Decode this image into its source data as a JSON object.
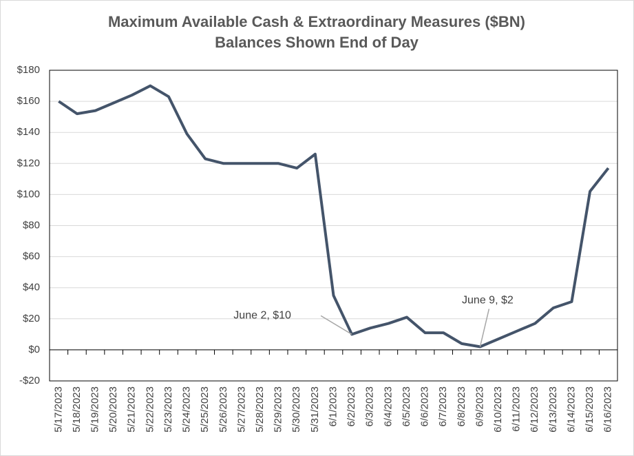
{
  "chart_data": {
    "type": "line",
    "title": "Maximum Available Cash & Extraordinary Measures ($BN)",
    "subtitle": "Balances Shown End of Day",
    "categories": [
      "5/17/2023",
      "5/18/2023",
      "5/19/2023",
      "5/20/2023",
      "5/21/2023",
      "5/22/2023",
      "5/23/2023",
      "5/24/2023",
      "5/25/2023",
      "5/26/2023",
      "5/27/2023",
      "5/28/2023",
      "5/29/2023",
      "5/30/2023",
      "5/31/2023",
      "6/1/2023",
      "6/2/2023",
      "6/3/2023",
      "6/4/2023",
      "6/5/2023",
      "6/6/2023",
      "6/7/2023",
      "6/8/2023",
      "6/9/2023",
      "6/10/2023",
      "6/11/2023",
      "6/12/2023",
      "6/13/2023",
      "6/14/2023",
      "6/15/2023",
      "6/16/2023"
    ],
    "series": [
      {
        "name": "Maximum Available Cash & Extraordinary Measures",
        "color": "#44546a",
        "values": [
          160,
          152,
          154,
          159,
          164,
          170,
          163,
          139,
          123,
          120,
          120,
          120,
          120,
          117,
          126,
          35,
          10,
          14,
          17,
          21,
          11,
          11,
          4,
          2,
          7,
          12,
          17,
          27,
          31,
          102,
          117
        ]
      }
    ],
    "ylim": [
      -20,
      180
    ],
    "yticks": [
      {
        "value": -20,
        "label": "-$20"
      },
      {
        "value": 0,
        "label": "$0"
      },
      {
        "value": 20,
        "label": "$20"
      },
      {
        "value": 40,
        "label": "$40"
      },
      {
        "value": 60,
        "label": "$60"
      },
      {
        "value": 80,
        "label": "$80"
      },
      {
        "value": 100,
        "label": "$100"
      },
      {
        "value": 120,
        "label": "$120"
      },
      {
        "value": 140,
        "label": "$140"
      },
      {
        "value": 160,
        "label": "$160"
      },
      {
        "value": 180,
        "label": "$180"
      }
    ],
    "grid": true,
    "annotations": [
      {
        "text": "June 2, $10",
        "x": "6/2/2023"
      },
      {
        "text": "June 9, $2",
        "x": "6/9/2023"
      }
    ]
  }
}
